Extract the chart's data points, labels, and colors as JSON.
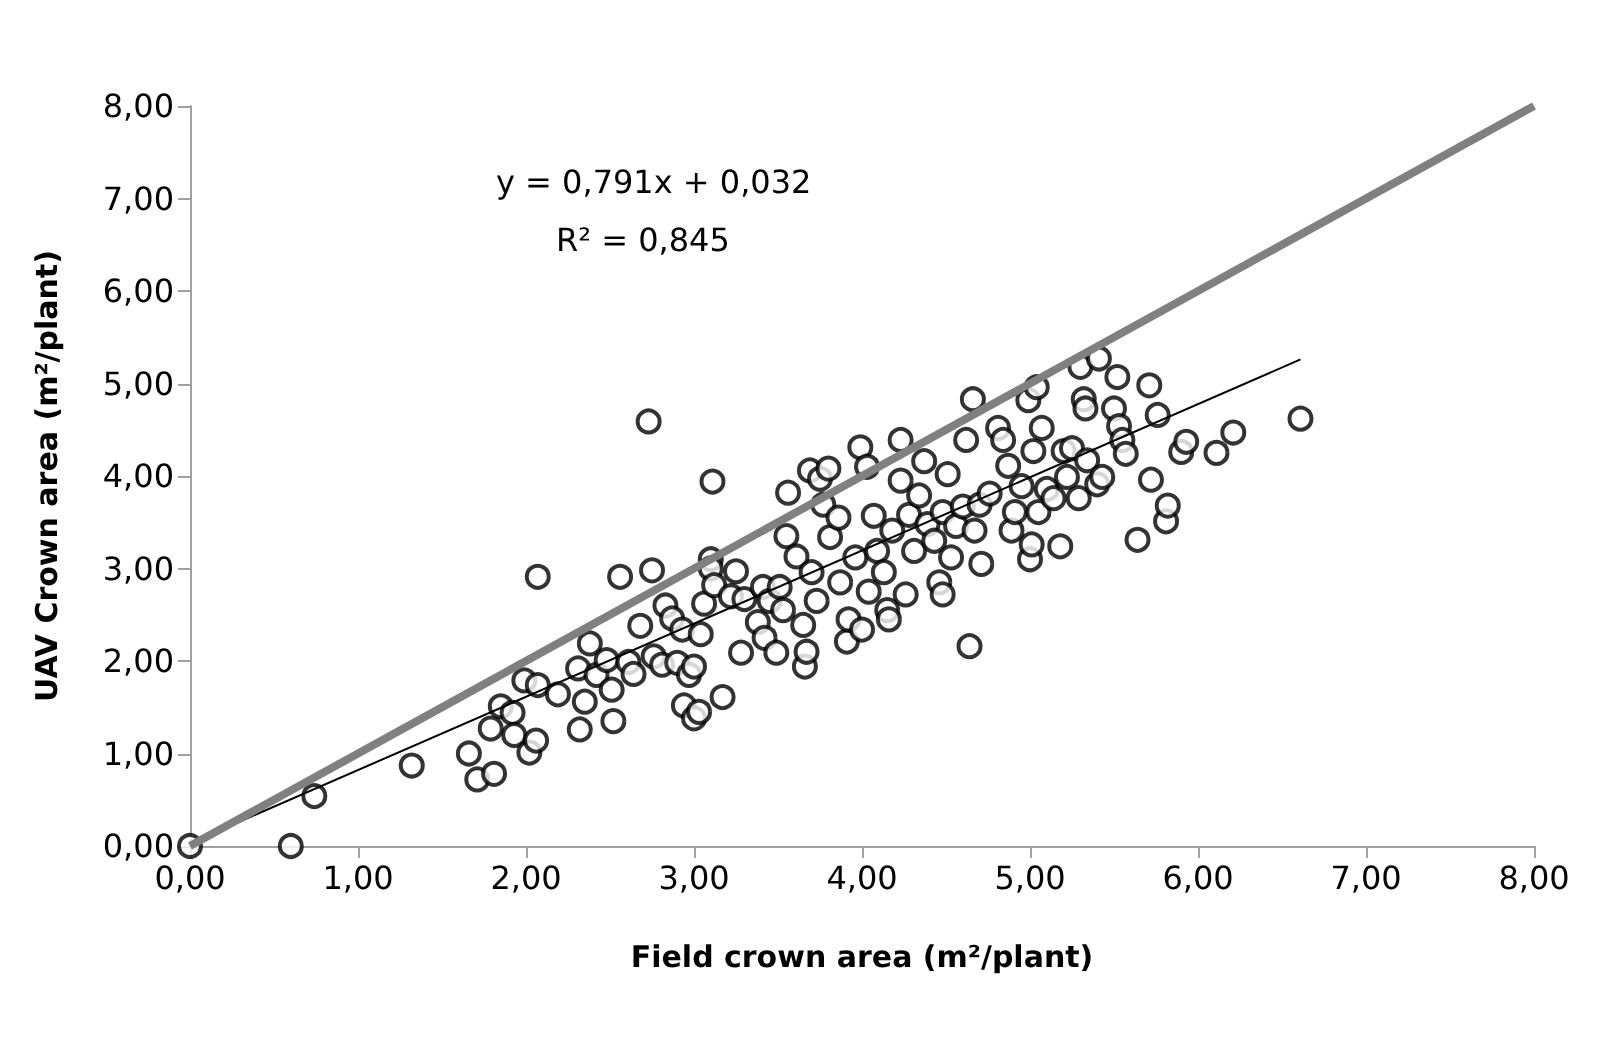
{
  "chart_data": {
    "type": "scatter",
    "xlabel": "Field crown area (m²/plant)",
    "ylabel": "UAV Crown area (m²/plant)",
    "annotations": [
      "y = 0,791x + 0,032",
      "R² = 0,845"
    ],
    "xlim": [
      0,
      8
    ],
    "ylim": [
      0,
      8
    ],
    "xticks": [
      {
        "value": 0,
        "label": "0,00"
      },
      {
        "value": 1,
        "label": "1,00"
      },
      {
        "value": 2,
        "label": "2,00"
      },
      {
        "value": 3,
        "label": "3,00"
      },
      {
        "value": 4,
        "label": "4,00"
      },
      {
        "value": 5,
        "label": "5,00"
      },
      {
        "value": 6,
        "label": "6,00"
      },
      {
        "value": 7,
        "label": "7,00"
      },
      {
        "value": 8,
        "label": "8,00"
      }
    ],
    "yticks": [
      {
        "value": 0,
        "label": "0,00"
      },
      {
        "value": 1,
        "label": "1,00"
      },
      {
        "value": 2,
        "label": "2,00"
      },
      {
        "value": 3,
        "label": "3,00"
      },
      {
        "value": 4,
        "label": "4,00"
      },
      {
        "value": 5,
        "label": "5,00"
      },
      {
        "value": 6,
        "label": "6,00"
      },
      {
        "value": 7,
        "label": "7,00"
      },
      {
        "value": 8,
        "label": "8,00"
      }
    ],
    "grid": false,
    "marker": "circle",
    "series": [
      {
        "color": "#000000",
        "x": [
          0,
          0.6,
          0.74,
          1.32,
          1.66,
          1.71,
          1.81,
          1.79,
          1.85,
          1.92,
          1.93,
          1.99,
          2.02,
          2.06,
          2.07,
          2.07,
          2.19,
          2.31,
          2.32,
          2.35,
          2.38,
          2.42,
          2.48,
          2.51,
          2.52,
          2.56,
          2.61,
          2.64,
          2.68,
          2.73,
          2.75,
          2.76,
          2.81,
          2.83,
          2.87,
          2.9,
          2.93,
          2.94,
          2.97,
          3.0,
          3.0,
          3.03,
          3.04,
          3.06,
          3.1,
          3.1,
          3.11,
          3.12,
          3.17,
          3.22,
          3.25,
          3.28,
          3.3,
          3.38,
          3.41,
          3.42,
          3.45,
          3.49,
          3.51,
          3.53,
          3.55,
          3.56,
          3.61,
          3.65,
          3.66,
          3.67,
          3.69,
          3.7,
          3.73,
          3.75,
          3.77,
          3.8,
          3.81,
          3.86,
          3.87,
          3.91,
          3.92,
          3.96,
          3.99,
          4.0,
          4.03,
          4.04,
          4.07,
          4.09,
          4.13,
          4.15,
          4.16,
          4.18,
          4.23,
          4.23,
          4.26,
          4.28,
          4.31,
          4.34,
          4.37,
          4.39,
          4.43,
          4.46,
          4.48,
          4.48,
          4.51,
          4.53,
          4.56,
          4.6,
          4.62,
          4.64,
          4.66,
          4.67,
          4.7,
          4.71,
          4.76,
          4.81,
          4.84,
          4.87,
          4.89,
          4.91,
          4.95,
          4.99,
          5.0,
          5.01,
          5.02,
          5.04,
          5.05,
          5.07,
          5.1,
          5.14,
          5.18,
          5.2,
          5.22,
          5.25,
          5.29,
          5.3,
          5.32,
          5.33,
          5.34,
          5.4,
          5.41,
          5.43,
          5.5,
          5.52,
          5.53,
          5.55,
          5.57,
          5.64,
          5.71,
          5.72,
          5.76,
          5.81,
          5.82,
          5.9,
          5.93,
          6.11,
          6.21,
          6.61
        ],
        "values": [
          0,
          0.0,
          0.54,
          0.87,
          1.0,
          0.72,
          0.78,
          1.27,
          1.51,
          1.44,
          1.2,
          1.79,
          1.01,
          1.14,
          1.74,
          2.91,
          1.64,
          1.92,
          1.26,
          1.56,
          2.19,
          1.85,
          2.01,
          1.69,
          1.35,
          2.91,
          1.99,
          1.86,
          2.38,
          4.59,
          2.98,
          2.05,
          1.96,
          2.6,
          2.46,
          1.98,
          2.34,
          1.52,
          1.85,
          1.94,
          1.38,
          1.45,
          2.29,
          2.62,
          3.1,
          3.0,
          3.94,
          2.82,
          1.61,
          2.7,
          2.97,
          2.09,
          2.67,
          2.42,
          2.8,
          2.25,
          2.65,
          2.09,
          2.8,
          2.55,
          3.35,
          3.82,
          3.13,
          2.39,
          1.94,
          2.1,
          4.06,
          2.96,
          2.65,
          3.97,
          3.69,
          4.08,
          3.34,
          3.55,
          2.85,
          2.21,
          2.45,
          3.12,
          4.31,
          2.34,
          4.1,
          2.75,
          3.57,
          3.19,
          2.96,
          2.55,
          2.45,
          3.41,
          4.39,
          3.95,
          2.72,
          3.58,
          3.19,
          3.79,
          4.16,
          3.48,
          3.3,
          2.85,
          2.72,
          3.61,
          4.02,
          3.12,
          3.46,
          3.67,
          4.39,
          2.16,
          4.83,
          3.41,
          3.69,
          3.05,
          3.81,
          4.52,
          4.39,
          4.11,
          3.41,
          3.61,
          3.89,
          4.82,
          3.1,
          3.26,
          4.27,
          4.96,
          3.61,
          4.52,
          3.86,
          3.76,
          3.24,
          4.27,
          3.99,
          4.3,
          3.76,
          5.18,
          4.83,
          4.73,
          4.17,
          3.91,
          5.27,
          3.99,
          4.73,
          5.07,
          4.54,
          4.39,
          4.24,
          3.31,
          4.98,
          3.96,
          4.66,
          3.51,
          3.68,
          4.26,
          4.37,
          4.25,
          4.47,
          4.62
        ]
      },
      {
        "type": "line",
        "color": "#000000",
        "marker": "none",
        "x": [
          0,
          6.61
        ],
        "values": [
          0.03,
          5.26
        ]
      },
      {
        "type": "line",
        "color": "#808080",
        "marker": "none",
        "x": [
          0,
          8
        ],
        "values": [
          0,
          8
        ]
      }
    ]
  }
}
